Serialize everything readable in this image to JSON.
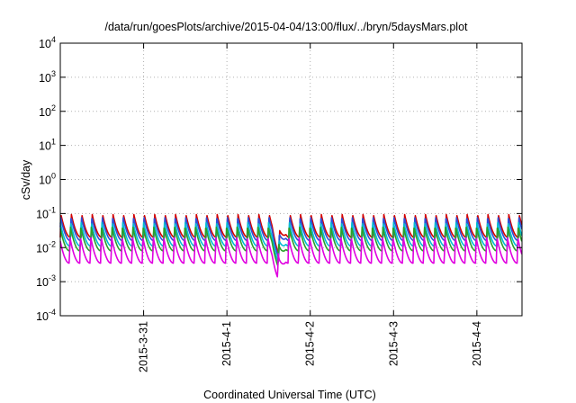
{
  "chart_data": {
    "type": "line",
    "title": "/data/run/goesPlots/archive/2015-04-04/13:00/flux/../bryn/5daysMars.plot",
    "xlabel": "Coordinated Universal Time (UTC)",
    "ylabel": "cSv/day",
    "yscale": "log",
    "ylim_exponents": [
      -4,
      4
    ],
    "y_tick_base": "10",
    "y_tick_exponents": [
      "-4",
      "-3",
      "-2",
      "-1",
      "0",
      "1",
      "2",
      "3",
      "4"
    ],
    "xlim": [
      "2015-03-30T00:00",
      "2015-04-04T13:00"
    ],
    "x_ticks": [
      "2015-3-31",
      "2015-4-1",
      "2015-4-2",
      "2015-4-3",
      "2015-4-4"
    ],
    "grid": true,
    "legend": "none",
    "cycle_hours": 3,
    "dip_event": {
      "start": "2015-04-01T13:00",
      "min": "2015-04-01T15:00",
      "recover": "2015-04-01T17:00"
    },
    "series": [
      {
        "color": "#d40000",
        "peak": 0.095,
        "trough": 0.02
      },
      {
        "color": "#2e4fd6",
        "peak": 0.08,
        "trough": 0.016
      },
      {
        "color": "#00bcd4",
        "peak": 0.055,
        "trough": 0.011
      },
      {
        "color": "#2aa02a",
        "peak": 0.042,
        "trough": 0.008
      },
      {
        "color": "#e000e0",
        "peak": 0.02,
        "trough": 0.0035
      }
    ]
  }
}
